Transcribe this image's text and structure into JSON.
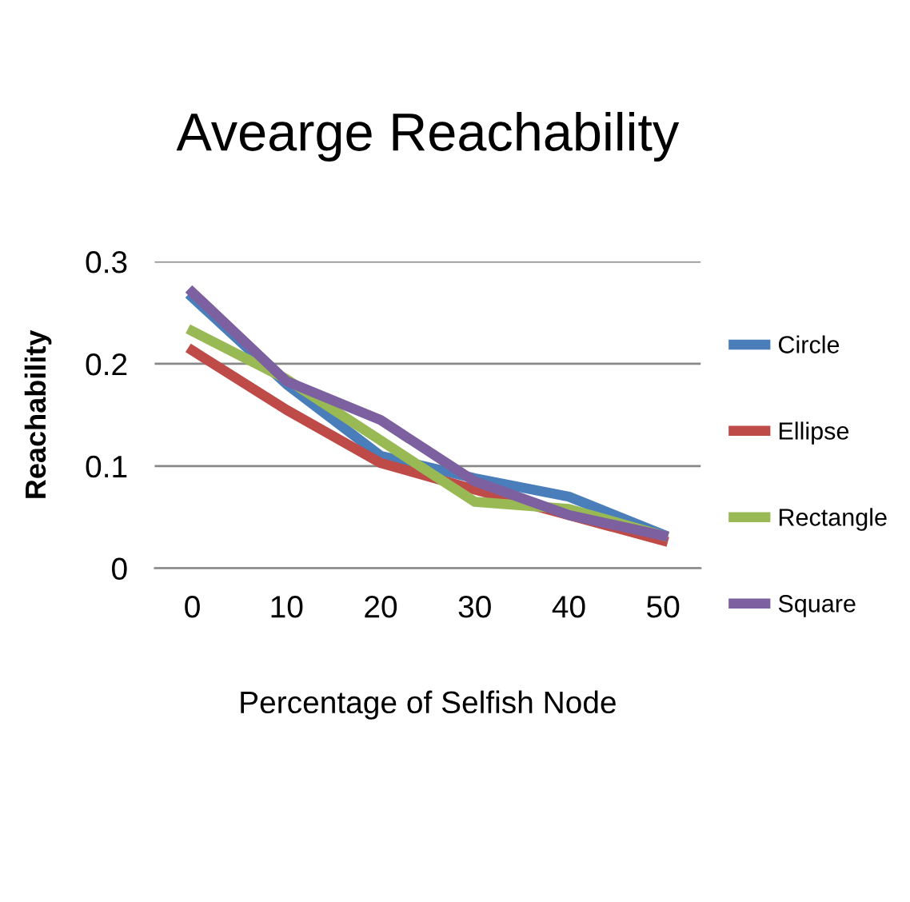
{
  "chart_data": {
    "type": "line",
    "title": "Avearge Reachability",
    "xlabel": "Percentage of Selfish Node",
    "ylabel": "Reachability",
    "categories": [
      "0",
      "10",
      "20",
      "30",
      "40",
      "50"
    ],
    "series": [
      {
        "name": "Circle",
        "color": "#4a7ebb",
        "values": [
          0.265,
          0.18,
          0.11,
          0.088,
          0.07,
          0.033
        ]
      },
      {
        "name": "Ellipse",
        "color": "#be4b48",
        "values": [
          0.213,
          0.155,
          0.103,
          0.077,
          0.052,
          0.027
        ]
      },
      {
        "name": "Rectangle",
        "color": "#98b954",
        "values": [
          0.232,
          0.185,
          0.125,
          0.065,
          0.058,
          0.032
        ]
      },
      {
        "name": "Square",
        "color": "#7d60a0",
        "values": [
          0.27,
          0.183,
          0.145,
          0.085,
          0.052,
          0.032
        ]
      }
    ],
    "ylim": [
      0,
      0.3
    ],
    "yticks": [
      {
        "value": 0,
        "label": "0"
      },
      0.1,
      0.2,
      0.3
    ],
    "grid": "y",
    "legend": "right",
    "marker": "none",
    "line_style": "solid"
  }
}
